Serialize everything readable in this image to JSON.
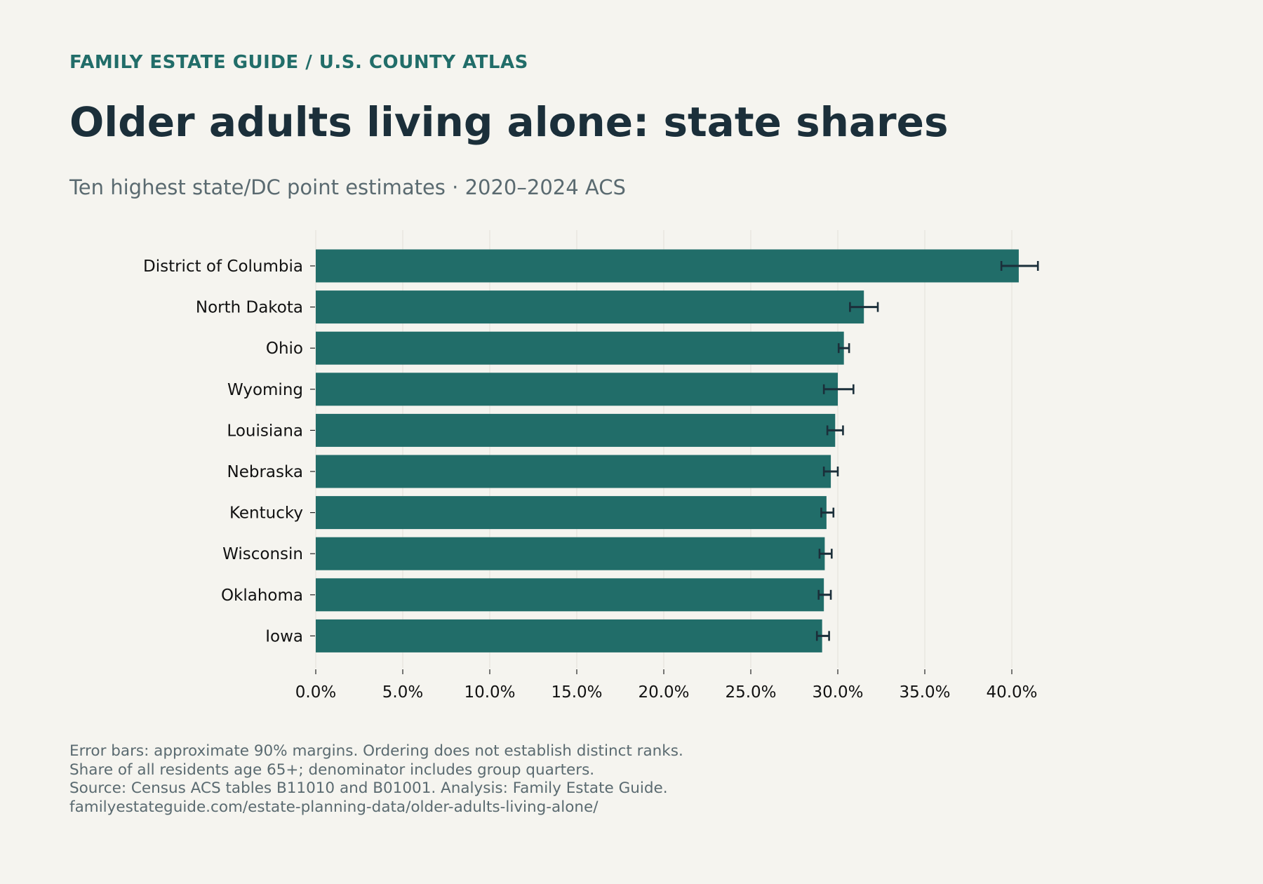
{
  "header": {
    "eyebrow": "FAMILY ESTATE GUIDE / U.S. COUNTY ATLAS",
    "title": "Older adults living alone: state shares",
    "subtitle": "Ten highest state/DC point estimates · 2020–2024 ACS"
  },
  "colors": {
    "background": "#f5f4ef",
    "bar": "#216d69",
    "error_bar": "#1b2f3a",
    "grid": "#e6e4dd",
    "accent": "#216d69"
  },
  "chart_data": {
    "type": "bar",
    "orientation": "horizontal",
    "categories": [
      "District of Columbia",
      "North Dakota",
      "Ohio",
      "Wyoming",
      "Louisiana",
      "Nebraska",
      "Kentucky",
      "Wisconsin",
      "Oklahoma",
      "Iowa"
    ],
    "values": [
      40.4,
      31.5,
      30.35,
      30.0,
      29.85,
      29.6,
      29.35,
      29.25,
      29.2,
      29.1
    ],
    "error_low": [
      39.4,
      30.7,
      30.05,
      29.2,
      29.4,
      29.2,
      29.05,
      28.95,
      28.9,
      28.8
    ],
    "error_high": [
      41.5,
      32.3,
      30.65,
      30.9,
      30.3,
      30.0,
      29.75,
      29.65,
      29.6,
      29.5
    ],
    "xlim": [
      0,
      40
    ],
    "xticks": [
      0,
      5,
      10,
      15,
      20,
      25,
      30,
      35,
      40
    ],
    "xtick_labels": [
      "0.0%",
      "5.0%",
      "10.0%",
      "15.0%",
      "20.0%",
      "25.0%",
      "30.0%",
      "35.0%",
      "40.0%"
    ],
    "xlabel": "",
    "ylabel": "",
    "grid": "vertical"
  },
  "footer": {
    "lines": [
      "Error bars: approximate 90% margins. Ordering does not establish distinct ranks.",
      "Share of all residents age 65+; denominator includes group quarters.",
      "Source: Census ACS tables B11010 and B01001. Analysis: Family Estate Guide.",
      "familyestateguide.com/estate-planning-data/older-adults-living-alone/"
    ]
  }
}
